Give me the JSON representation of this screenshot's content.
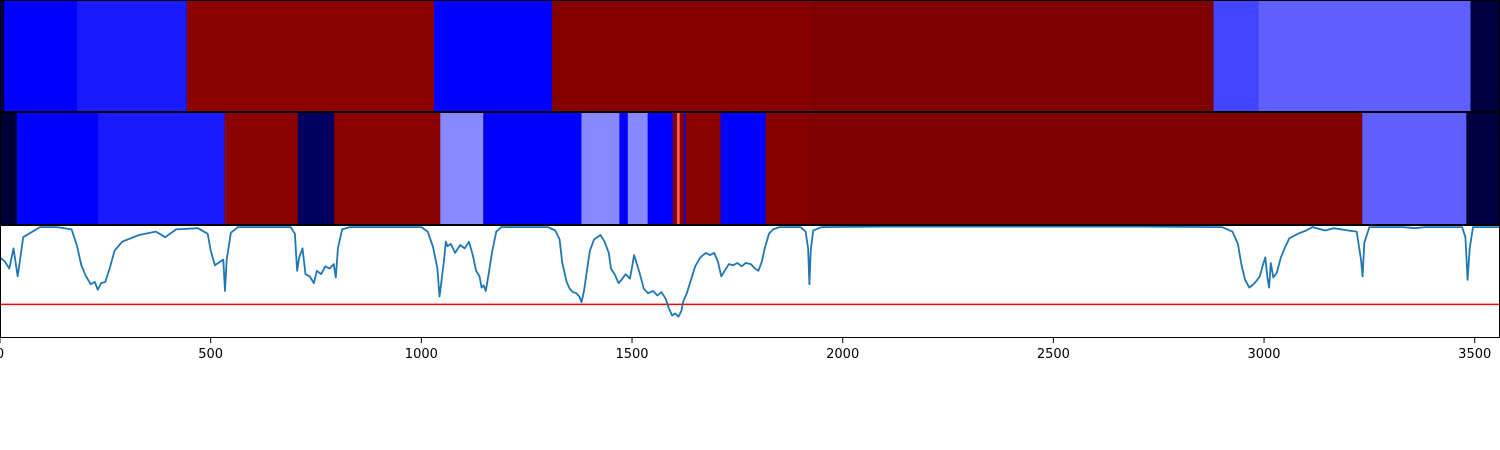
{
  "chart_data": {
    "type": "heatmap",
    "x_range": [
      0,
      3560
    ],
    "x_ticks": [
      0,
      500,
      1000,
      1500,
      2000,
      2500,
      3000,
      3500
    ],
    "grid": false,
    "legend": "none",
    "panels": [
      {
        "kind": "segment-strip",
        "segments": [
          {
            "start": 0,
            "end": 10,
            "color": "#000040"
          },
          {
            "start": 10,
            "end": 183,
            "color": "#0000ff"
          },
          {
            "start": 183,
            "end": 443,
            "color": "#1a1aff"
          },
          {
            "start": 443,
            "end": 1030,
            "color": "#8b0000"
          },
          {
            "start": 1030,
            "end": 1310,
            "color": "#0000ff"
          },
          {
            "start": 1310,
            "end": 1923,
            "color": "#850000"
          },
          {
            "start": 1923,
            "end": 2880,
            "color": "#7e0000"
          },
          {
            "start": 2880,
            "end": 2987,
            "color": "#4444ff"
          },
          {
            "start": 2987,
            "end": 3490,
            "color": "#5f5fff"
          },
          {
            "start": 3490,
            "end": 3560,
            "color": "#000040"
          }
        ]
      },
      {
        "kind": "segment-strip",
        "segments": [
          {
            "start": 0,
            "end": 40,
            "color": "#000038"
          },
          {
            "start": 40,
            "end": 233,
            "color": "#0000ff"
          },
          {
            "start": 233,
            "end": 533,
            "color": "#1a1aff"
          },
          {
            "start": 533,
            "end": 707,
            "color": "#8b0000"
          },
          {
            "start": 707,
            "end": 793,
            "color": "#000060"
          },
          {
            "start": 793,
            "end": 1045,
            "color": "#8b0000"
          },
          {
            "start": 1045,
            "end": 1147,
            "color": "#8888ff"
          },
          {
            "start": 1147,
            "end": 1150,
            "color": "#0000aa"
          },
          {
            "start": 1150,
            "end": 1380,
            "color": "#0000ff"
          },
          {
            "start": 1380,
            "end": 1470,
            "color": "#8888ff"
          },
          {
            "start": 1470,
            "end": 1490,
            "color": "#0000ff"
          },
          {
            "start": 1490,
            "end": 1537,
            "color": "#8888ff"
          },
          {
            "start": 1537,
            "end": 1597,
            "color": "#0000ff"
          },
          {
            "start": 1597,
            "end": 1607,
            "color": "#8b0000"
          },
          {
            "start": 1607,
            "end": 1613,
            "color": "#ff6a5a"
          },
          {
            "start": 1613,
            "end": 1623,
            "color": "#8b0000"
          },
          {
            "start": 1623,
            "end": 1627,
            "color": "#0000ff"
          },
          {
            "start": 1627,
            "end": 1710,
            "color": "#8b0000"
          },
          {
            "start": 1710,
            "end": 1817,
            "color": "#0000ff"
          },
          {
            "start": 1817,
            "end": 1920,
            "color": "#850000"
          },
          {
            "start": 1920,
            "end": 3233,
            "color": "#7e0000"
          },
          {
            "start": 3233,
            "end": 3480,
            "color": "#5f5fff"
          },
          {
            "start": 3480,
            "end": 3560,
            "color": "#000040"
          }
        ]
      },
      {
        "kind": "line",
        "y_range": [
          0,
          1
        ],
        "line_color": "#1f77b4",
        "threshold": 0.3,
        "threshold_color": "#ff0000",
        "points": [
          [
            0,
            0.72
          ],
          [
            12,
            0.68
          ],
          [
            22,
            0.62
          ],
          [
            32,
            0.8
          ],
          [
            42,
            0.55
          ],
          [
            55,
            0.9
          ],
          [
            95,
            0.99
          ],
          [
            135,
            0.99
          ],
          [
            170,
            0.97
          ],
          [
            183,
            0.82
          ],
          [
            193,
            0.65
          ],
          [
            203,
            0.56
          ],
          [
            215,
            0.48
          ],
          [
            225,
            0.5
          ],
          [
            232,
            0.43
          ],
          [
            240,
            0.49
          ],
          [
            250,
            0.5
          ],
          [
            260,
            0.62
          ],
          [
            272,
            0.78
          ],
          [
            290,
            0.86
          ],
          [
            330,
            0.92
          ],
          [
            370,
            0.95
          ],
          [
            392,
            0.9
          ],
          [
            418,
            0.97
          ],
          [
            470,
            0.98
          ],
          [
            493,
            0.93
          ],
          [
            500,
            0.78
          ],
          [
            510,
            0.65
          ],
          [
            522,
            0.68
          ],
          [
            530,
            0.7
          ],
          [
            534,
            0.42
          ],
          [
            538,
            0.7
          ],
          [
            548,
            0.94
          ],
          [
            565,
            0.99
          ],
          [
            690,
            0.99
          ],
          [
            700,
            0.93
          ],
          [
            705,
            0.6
          ],
          [
            710,
            0.72
          ],
          [
            718,
            0.8
          ],
          [
            725,
            0.57
          ],
          [
            735,
            0.55
          ],
          [
            745,
            0.49
          ],
          [
            752,
            0.6
          ],
          [
            762,
            0.57
          ],
          [
            772,
            0.64
          ],
          [
            782,
            0.62
          ],
          [
            792,
            0.66
          ],
          [
            797,
            0.54
          ],
          [
            802,
            0.8
          ],
          [
            812,
            0.97
          ],
          [
            830,
            0.99
          ],
          [
            1000,
            0.99
          ],
          [
            1015,
            0.95
          ],
          [
            1028,
            0.81
          ],
          [
            1038,
            0.62
          ],
          [
            1043,
            0.37
          ],
          [
            1048,
            0.52
          ],
          [
            1054,
            0.7
          ],
          [
            1058,
            0.86
          ],
          [
            1062,
            0.82
          ],
          [
            1070,
            0.84
          ],
          [
            1080,
            0.76
          ],
          [
            1092,
            0.83
          ],
          [
            1103,
            0.8
          ],
          [
            1113,
            0.86
          ],
          [
            1122,
            0.74
          ],
          [
            1130,
            0.6
          ],
          [
            1138,
            0.55
          ],
          [
            1143,
            0.45
          ],
          [
            1148,
            0.47
          ],
          [
            1153,
            0.42
          ],
          [
            1160,
            0.58
          ],
          [
            1168,
            0.77
          ],
          [
            1178,
            0.95
          ],
          [
            1190,
            0.99
          ],
          [
            1300,
            0.99
          ],
          [
            1318,
            0.96
          ],
          [
            1328,
            0.88
          ],
          [
            1334,
            0.68
          ],
          [
            1340,
            0.58
          ],
          [
            1345,
            0.5
          ],
          [
            1352,
            0.44
          ],
          [
            1360,
            0.41
          ],
          [
            1368,
            0.4
          ],
          [
            1375,
            0.37
          ],
          [
            1380,
            0.32
          ],
          [
            1386,
            0.42
          ],
          [
            1393,
            0.6
          ],
          [
            1400,
            0.78
          ],
          [
            1410,
            0.88
          ],
          [
            1425,
            0.92
          ],
          [
            1435,
            0.86
          ],
          [
            1445,
            0.76
          ],
          [
            1450,
            0.62
          ],
          [
            1460,
            0.56
          ],
          [
            1468,
            0.49
          ],
          [
            1475,
            0.52
          ],
          [
            1485,
            0.57
          ],
          [
            1495,
            0.53
          ],
          [
            1500,
            0.63
          ],
          [
            1505,
            0.74
          ],
          [
            1510,
            0.68
          ],
          [
            1518,
            0.58
          ],
          [
            1528,
            0.44
          ],
          [
            1538,
            0.4
          ],
          [
            1550,
            0.42
          ],
          [
            1560,
            0.38
          ],
          [
            1570,
            0.41
          ],
          [
            1580,
            0.35
          ],
          [
            1587,
            0.27
          ],
          [
            1595,
            0.2
          ],
          [
            1602,
            0.22
          ],
          [
            1610,
            0.19
          ],
          [
            1617,
            0.24
          ],
          [
            1622,
            0.33
          ],
          [
            1630,
            0.4
          ],
          [
            1640,
            0.52
          ],
          [
            1650,
            0.64
          ],
          [
            1662,
            0.72
          ],
          [
            1675,
            0.76
          ],
          [
            1685,
            0.74
          ],
          [
            1695,
            0.76
          ],
          [
            1704,
            0.68
          ],
          [
            1712,
            0.55
          ],
          [
            1720,
            0.6
          ],
          [
            1730,
            0.66
          ],
          [
            1740,
            0.65
          ],
          [
            1750,
            0.67
          ],
          [
            1760,
            0.64
          ],
          [
            1770,
            0.67
          ],
          [
            1782,
            0.66
          ],
          [
            1792,
            0.62
          ],
          [
            1800,
            0.6
          ],
          [
            1808,
            0.68
          ],
          [
            1815,
            0.8
          ],
          [
            1825,
            0.93
          ],
          [
            1835,
            0.97
          ],
          [
            1850,
            0.99
          ],
          [
            1900,
            0.99
          ],
          [
            1912,
            0.95
          ],
          [
            1918,
            0.8
          ],
          [
            1921,
            0.48
          ],
          [
            1924,
            0.78
          ],
          [
            1930,
            0.96
          ],
          [
            1950,
            0.99
          ],
          [
            2100,
            0.995
          ],
          [
            2400,
            0.995
          ],
          [
            2700,
            0.995
          ],
          [
            2900,
            0.99
          ],
          [
            2925,
            0.95
          ],
          [
            2938,
            0.84
          ],
          [
            2946,
            0.66
          ],
          [
            2955,
            0.52
          ],
          [
            2965,
            0.45
          ],
          [
            2972,
            0.47
          ],
          [
            2980,
            0.5
          ],
          [
            2990,
            0.55
          ],
          [
            2997,
            0.65
          ],
          [
            3003,
            0.72
          ],
          [
            3008,
            0.54
          ],
          [
            3012,
            0.45
          ],
          [
            3016,
            0.67
          ],
          [
            3022,
            0.54
          ],
          [
            3030,
            0.58
          ],
          [
            3040,
            0.72
          ],
          [
            3050,
            0.81
          ],
          [
            3060,
            0.89
          ],
          [
            3080,
            0.93
          ],
          [
            3100,
            0.96
          ],
          [
            3115,
            0.99
          ],
          [
            3145,
            0.96
          ],
          [
            3165,
            0.98
          ],
          [
            3200,
            0.96
          ],
          [
            3220,
            0.95
          ],
          [
            3230,
            0.7
          ],
          [
            3234,
            0.55
          ],
          [
            3238,
            0.85
          ],
          [
            3250,
            0.99
          ],
          [
            3330,
            0.99
          ],
          [
            3360,
            0.98
          ],
          [
            3380,
            0.99
          ],
          [
            3470,
            0.99
          ],
          [
            3478,
            0.9
          ],
          [
            3483,
            0.52
          ],
          [
            3488,
            0.8
          ],
          [
            3496,
            0.99
          ],
          [
            3560,
            0.99
          ]
        ]
      }
    ]
  }
}
